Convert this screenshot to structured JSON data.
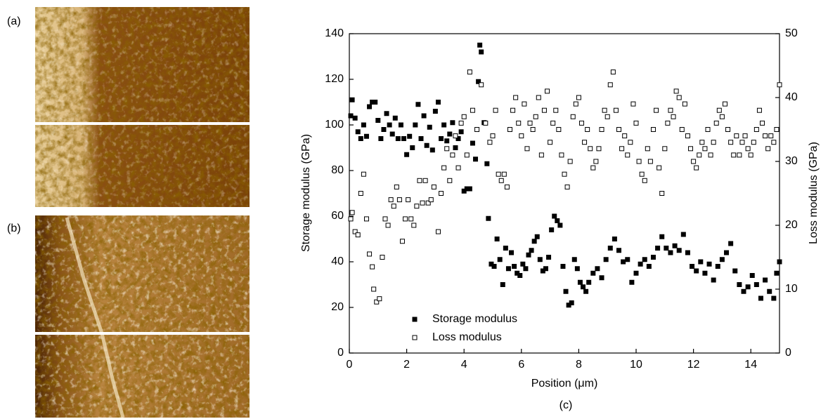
{
  "panels": [
    {
      "label": "(a)"
    },
    {
      "label": "(b)"
    }
  ],
  "chart_data": {
    "type": "scatter",
    "caption": "(c)",
    "x_label": "Position (μm)",
    "y_label": "Storage modulus (GPa)",
    "y2_label": "Loss modulus (GPa)",
    "xlim": [
      0,
      15
    ],
    "xticks": [
      0,
      2,
      4,
      6,
      8,
      10,
      12,
      14
    ],
    "ylim": [
      0,
      140
    ],
    "yticks": [
      0,
      20,
      40,
      60,
      80,
      100,
      120,
      140
    ],
    "y2lim": [
      0,
      50
    ],
    "y2ticks": [
      0,
      10,
      20,
      30,
      40,
      50
    ],
    "legend": "lower left",
    "series": [
      {
        "name": "Storage modulus",
        "color": "#000000",
        "filled": true,
        "axis": "y",
        "x": [
          0.05,
          0.1,
          0.2,
          0.3,
          0.4,
          0.5,
          0.6,
          0.7,
          0.8,
          0.9,
          1.0,
          1.1,
          1.2,
          1.3,
          1.4,
          1.5,
          1.6,
          1.7,
          1.8,
          1.9,
          2.0,
          2.1,
          2.2,
          2.3,
          2.4,
          2.5,
          2.6,
          2.7,
          2.8,
          2.9,
          3.0,
          3.1,
          3.2,
          3.3,
          3.4,
          3.5,
          3.6,
          3.7,
          3.8,
          3.9,
          4.0,
          4.1,
          4.2,
          4.3,
          4.4,
          4.5,
          4.55,
          4.6,
          4.7,
          4.8,
          4.85,
          4.95,
          5.05,
          5.15,
          5.25,
          5.35,
          5.45,
          5.55,
          5.65,
          5.75,
          5.85,
          5.95,
          6.05,
          6.15,
          6.25,
          6.35,
          6.45,
          6.55,
          6.65,
          6.75,
          6.85,
          6.95,
          7.05,
          7.15,
          7.25,
          7.35,
          7.45,
          7.55,
          7.65,
          7.75,
          7.85,
          7.95,
          8.05,
          8.15,
          8.25,
          8.35,
          8.5,
          8.65,
          8.8,
          8.95,
          9.1,
          9.25,
          9.4,
          9.55,
          9.7,
          9.85,
          10.0,
          10.15,
          10.3,
          10.45,
          10.6,
          10.75,
          10.9,
          11.05,
          11.2,
          11.35,
          11.5,
          11.65,
          11.8,
          11.95,
          12.1,
          12.25,
          12.4,
          12.55,
          12.7,
          12.85,
          13.0,
          13.15,
          13.3,
          13.45,
          13.6,
          13.75,
          13.9,
          14.05,
          14.2,
          14.35,
          14.5,
          14.65,
          14.8,
          14.9,
          15.0
        ],
        "values": [
          104,
          111,
          103,
          97,
          94,
          100,
          95,
          108,
          110,
          110,
          102,
          94,
          98,
          105,
          100,
          96,
          103,
          94,
          100,
          94,
          87,
          95,
          90,
          100,
          109,
          94,
          104,
          91,
          99,
          89,
          106,
          110,
          94,
          100,
          93,
          96,
          101,
          90,
          94,
          97,
          71,
          72,
          72,
          92,
          85,
          119,
          135,
          132,
          101,
          83,
          59,
          39,
          38,
          50,
          41,
          30,
          46,
          37,
          44,
          38,
          35,
          34,
          39,
          37,
          43,
          45,
          49,
          51,
          41,
          36,
          37,
          42,
          54,
          60,
          58,
          56,
          38,
          27,
          21,
          22,
          41,
          37,
          31,
          29,
          27,
          31,
          35,
          37,
          33,
          41,
          46,
          50,
          45,
          40,
          41,
          31,
          35,
          39,
          41,
          38,
          42,
          46,
          51,
          46,
          44,
          47,
          45,
          52,
          44,
          38,
          36,
          40,
          35,
          39,
          32,
          38,
          41,
          44,
          48,
          36,
          30,
          27,
          29,
          34,
          30,
          24,
          32,
          27,
          24,
          35,
          40
        ]
      },
      {
        "name": "Loss modulus",
        "color": "#000000",
        "filled": false,
        "axis": "y2",
        "x": [
          0.05,
          0.1,
          0.2,
          0.3,
          0.4,
          0.5,
          0.6,
          0.7,
          0.8,
          0.85,
          0.95,
          1.05,
          1.15,
          1.25,
          1.35,
          1.45,
          1.55,
          1.65,
          1.75,
          1.85,
          1.95,
          2.05,
          2.15,
          2.25,
          2.35,
          2.45,
          2.55,
          2.65,
          2.75,
          2.85,
          2.95,
          3.1,
          3.2,
          3.3,
          3.4,
          3.5,
          3.6,
          3.7,
          3.8,
          3.9,
          4.0,
          4.1,
          4.2,
          4.3,
          4.45,
          4.6,
          4.75,
          4.9,
          5.0,
          5.1,
          5.2,
          5.3,
          5.4,
          5.5,
          5.6,
          5.7,
          5.8,
          5.9,
          6.0,
          6.1,
          6.2,
          6.3,
          6.4,
          6.5,
          6.6,
          6.7,
          6.8,
          6.9,
          7.0,
          7.1,
          7.2,
          7.3,
          7.4,
          7.5,
          7.6,
          7.7,
          7.8,
          7.9,
          8.0,
          8.1,
          8.2,
          8.3,
          8.4,
          8.5,
          8.6,
          8.7,
          8.8,
          8.9,
          9.0,
          9.1,
          9.2,
          9.3,
          9.4,
          9.5,
          9.6,
          9.7,
          9.8,
          9.9,
          10.0,
          10.1,
          10.2,
          10.3,
          10.4,
          10.5,
          10.6,
          10.7,
          10.8,
          10.9,
          11.0,
          11.1,
          11.2,
          11.3,
          11.4,
          11.5,
          11.6,
          11.7,
          11.8,
          11.9,
          12.0,
          12.1,
          12.2,
          12.3,
          12.4,
          12.5,
          12.6,
          12.7,
          12.8,
          12.9,
          13.0,
          13.1,
          13.2,
          13.3,
          13.4,
          13.5,
          13.6,
          13.7,
          13.8,
          13.9,
          14.0,
          14.1,
          14.2,
          14.3,
          14.4,
          14.5,
          14.6,
          14.7,
          14.8,
          14.9,
          15.0
        ],
        "values": [
          21,
          22,
          19,
          18.5,
          25,
          28,
          21,
          15.5,
          13.5,
          10,
          8,
          8.5,
          15,
          21,
          20,
          24,
          23,
          26,
          24,
          17.5,
          21,
          24,
          21,
          20,
          23,
          27,
          23.5,
          27,
          23.5,
          24,
          26,
          19,
          25,
          29,
          32,
          27,
          31,
          34,
          29,
          36,
          37,
          31,
          44,
          38,
          35,
          42,
          36,
          33,
          34,
          38,
          28,
          27,
          28,
          26,
          35,
          38,
          40,
          36,
          34,
          39,
          32,
          36,
          35,
          37,
          40,
          31,
          38,
          41,
          33,
          36,
          38,
          35,
          31,
          28,
          26,
          30,
          37,
          39,
          40,
          36,
          33,
          35,
          32,
          29,
          30,
          32,
          35,
          38,
          37,
          42,
          44,
          38,
          35,
          32,
          34,
          31,
          33,
          39,
          36,
          30,
          28,
          27,
          32,
          30,
          35,
          38,
          29,
          25,
          32,
          36,
          38,
          37,
          41,
          40,
          35,
          39,
          34,
          32,
          30,
          29,
          31,
          33,
          32,
          35,
          31,
          33,
          36,
          38,
          37,
          39,
          35,
          33,
          31,
          34,
          31,
          33,
          34,
          32,
          31,
          33,
          35,
          38,
          36,
          34,
          32,
          34,
          33,
          35,
          42
        ]
      }
    ]
  }
}
